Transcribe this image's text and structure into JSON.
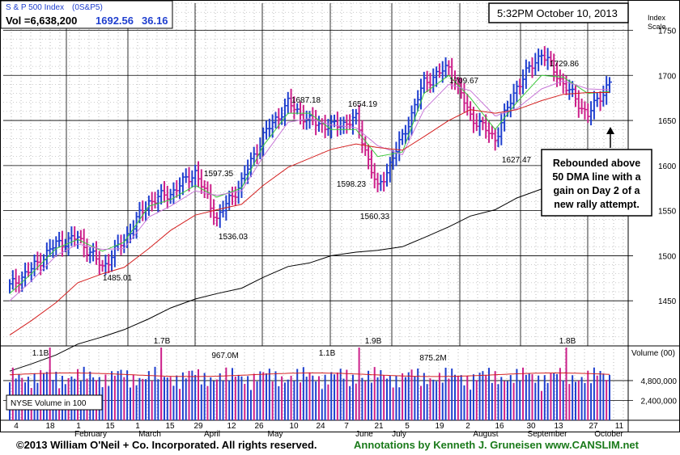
{
  "header": {
    "index_name": "S & P 500 Index",
    "symbol": "(0S&P5)",
    "vol_label": "Vol =6,638,200",
    "last_price": "1692.56",
    "change": "36.16"
  },
  "timestamp": "5:32PM October 10, 2013",
  "price_scale_label_1": "Index",
  "price_scale_label_2": "Scale",
  "volume_scale_label": "Volume (00)",
  "volume_legend": "NYSE Volume in 100",
  "annotation_box": [
    "Rebounded above",
    "50 DMA line with a",
    "gain on Day 2 of a",
    "new rally attempt."
  ],
  "footer": {
    "copyright": "©2013 William O'Neil + Co. Incorporated. All rights reserved.",
    "annotations": "Annotations by Kenneth J. Gruneisen www.CANSLIM.net"
  },
  "colors": {
    "up_bar": "#1f3fcf",
    "down_bar": "#cc1f8a",
    "ma50": "#d42020",
    "ma10": "#3cc83c",
    "ma21": "#c878d8",
    "ma200": "#000000",
    "footer_green": "#1a7a1a"
  },
  "chart_data": [
    {
      "type": "line",
      "title": "S & P 500 Index",
      "y_scale_label": "Index Scale",
      "ylim": [
        1400,
        1780
      ],
      "y_ticks": [
        1450,
        1500,
        1550,
        1600,
        1650,
        1700,
        1750
      ],
      "x_labels": [
        "4",
        "18",
        "February",
        "1",
        "15",
        "March",
        "1",
        "15",
        "29",
        "April",
        "12",
        "26",
        "May",
        "10",
        "24",
        "7",
        "June",
        "21",
        "July",
        "5",
        "19",
        "2",
        "August",
        "16",
        "30",
        "September",
        "13",
        "27",
        "October",
        "11"
      ],
      "price_points": [
        {
          "date": "Jan 4",
          "close": 1466
        },
        {
          "date": "Jan 18",
          "close": 1485
        },
        {
          "date": "Feb 1",
          "close": 1513
        },
        {
          "date": "Feb 15",
          "close": 1520
        },
        {
          "date": "Feb 26",
          "close": 1487
        },
        {
          "date": "Mar 1",
          "close": 1518
        },
        {
          "date": "Mar 15",
          "close": 1560
        },
        {
          "date": "Mar 29",
          "close": 1569
        },
        {
          "date": "Apr 11",
          "close": 1593
        },
        {
          "date": "Apr 18",
          "close": 1541
        },
        {
          "date": "Apr 26",
          "close": 1582
        },
        {
          "date": "May 10",
          "close": 1633
        },
        {
          "date": "May 21",
          "close": 1669
        },
        {
          "date": "May 24",
          "close": 1649
        },
        {
          "date": "Jun 7",
          "close": 1643
        },
        {
          "date": "Jun 18",
          "close": 1651
        },
        {
          "date": "Jun 24",
          "close": 1573
        },
        {
          "date": "Jul 5",
          "close": 1631
        },
        {
          "date": "Jul 19",
          "close": 1692
        },
        {
          "date": "Aug 2",
          "close": 1709
        },
        {
          "date": "Aug 16",
          "close": 1655
        },
        {
          "date": "Aug 27",
          "close": 1630
        },
        {
          "date": "Sep 13",
          "close": 1688
        },
        {
          "date": "Sep 18",
          "close": 1725
        },
        {
          "date": "Sep 27",
          "close": 1691
        },
        {
          "date": "Oct 8",
          "close": 1656
        },
        {
          "date": "Oct 10",
          "close": 1692.56
        }
      ],
      "annotations": [
        {
          "label": "1485.01",
          "value": 1485.01
        },
        {
          "label": "1597.35",
          "value": 1597.35
        },
        {
          "label": "1536.03",
          "value": 1536.03
        },
        {
          "label": "1687.18",
          "value": 1687.18
        },
        {
          "label": "1654.19",
          "value": 1654.19
        },
        {
          "label": "1598.23",
          "value": 1598.23
        },
        {
          "label": "1560.33",
          "value": 1560.33
        },
        {
          "label": "1709.67",
          "value": 1709.67
        },
        {
          "label": "1627.47",
          "value": 1627.47
        },
        {
          "label": "1729.86",
          "value": 1729.86
        }
      ],
      "moving_averages": [
        {
          "period": 10,
          "values": [
            1458,
            1480,
            1508,
            1518,
            1505,
            1515,
            1555,
            1562,
            1578,
            1565,
            1575,
            1622,
            1658,
            1658,
            1640,
            1640,
            1610,
            1615,
            1680,
            1700,
            1675,
            1640,
            1670,
            1700,
            1698,
            1680,
            1682
          ]
        },
        {
          "period": 21,
          "values": [
            1450,
            1472,
            1500,
            1513,
            1507,
            1508,
            1543,
            1555,
            1572,
            1567,
            1572,
            1610,
            1648,
            1652,
            1645,
            1642,
            1622,
            1612,
            1662,
            1690,
            1683,
            1655,
            1663,
            1685,
            1694,
            1685,
            1684
          ]
        },
        {
          "period": 50,
          "values": [
            1412,
            1428,
            1448,
            1470,
            1480,
            1487,
            1508,
            1528,
            1545,
            1551,
            1557,
            1578,
            1598,
            1608,
            1618,
            1624,
            1620,
            1617,
            1632,
            1650,
            1662,
            1658,
            1662,
            1672,
            1679,
            1681,
            1681
          ]
        },
        {
          "period": 200,
          "values": [
            1372,
            1380,
            1390,
            1402,
            1410,
            1418,
            1430,
            1442,
            1452,
            1458,
            1464,
            1476,
            1488,
            1492,
            1500,
            1504,
            1506,
            1510,
            1520,
            1532,
            1544,
            1551,
            1564,
            1574,
            1582,
            1592,
            1594
          ]
        }
      ]
    },
    {
      "type": "bar",
      "title": "NYSE Volume in 100",
      "y_scale_label": "Volume (00)",
      "y_ticks": [
        2400000,
        4800000
      ],
      "y_tick_labels": [
        "2,400,000",
        "4,800,000"
      ],
      "ylim": [
        0,
        9000000
      ],
      "volume_annotations": [
        {
          "label": "1.1B",
          "value": 11000000
        },
        {
          "label": "1.7B",
          "value": 17000000
        },
        {
          "label": "967.0M",
          "value": 9670000
        },
        {
          "label": "1.1B",
          "value": 11000000
        },
        {
          "label": "1.9B",
          "value": 19000000
        },
        {
          "label": "875.2M",
          "value": 8752000
        },
        {
          "label": "1.8B",
          "value": 18000000
        }
      ],
      "average_volume": 5400000
    }
  ]
}
